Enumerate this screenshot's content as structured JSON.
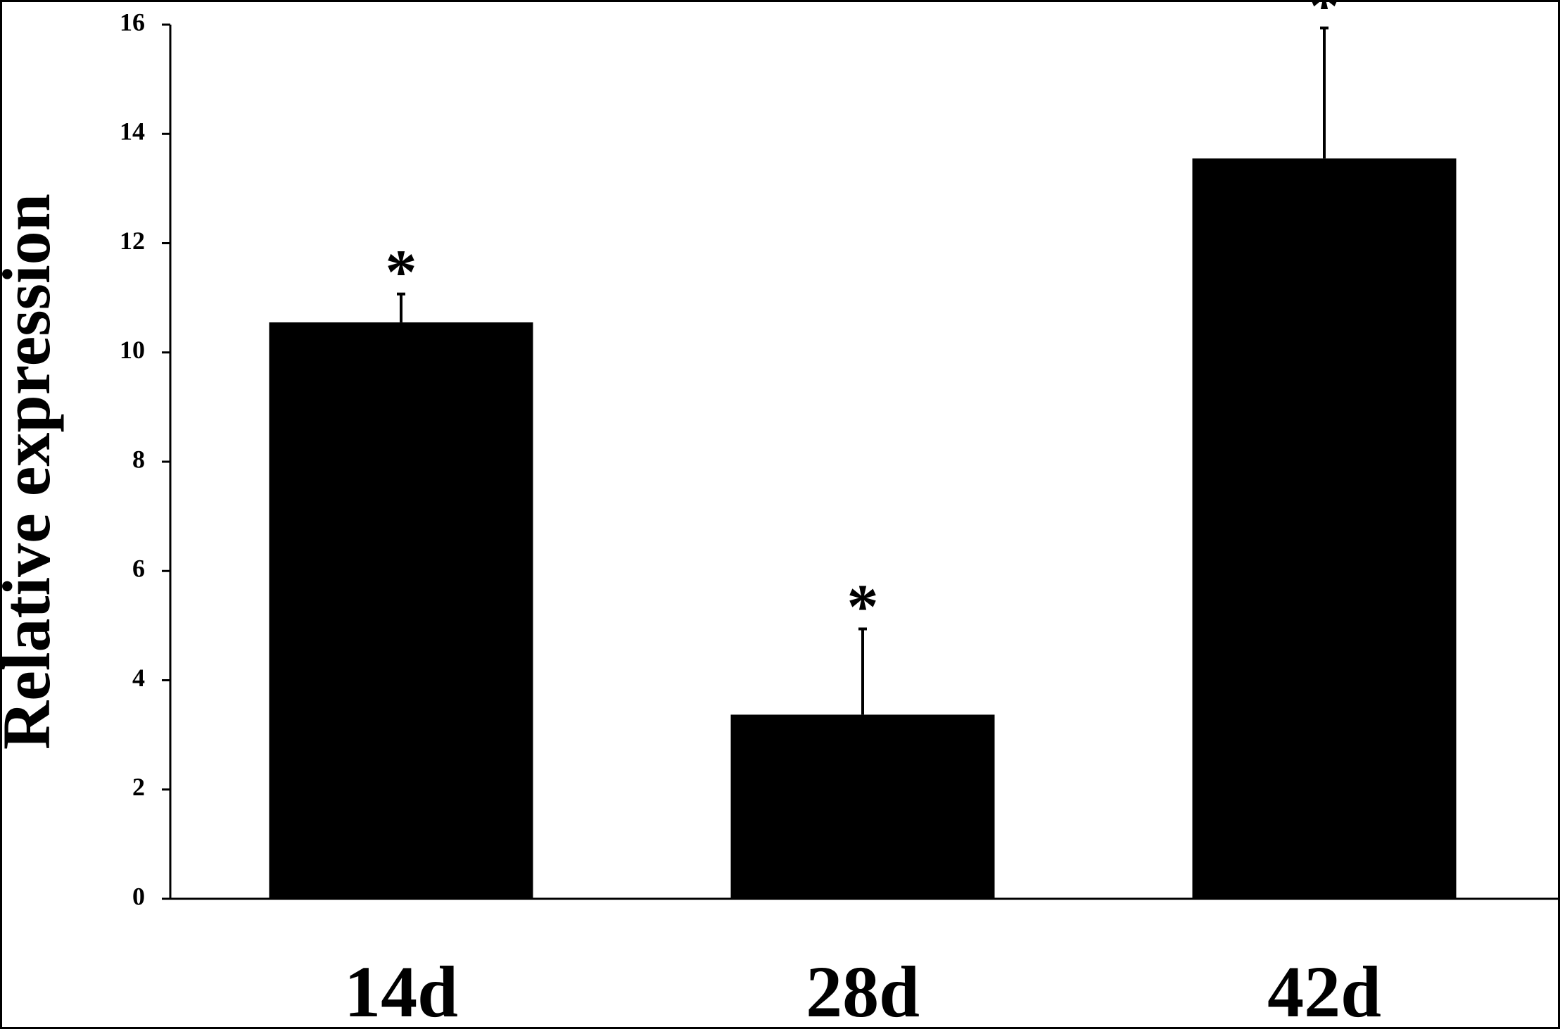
{
  "chart_data": {
    "type": "bar",
    "ylabel": "Relative expression",
    "categories": [
      "14d",
      "28d",
      "42d"
    ],
    "values": [
      10.55,
      3.37,
      13.55
    ],
    "errors": [
      0.52,
      1.57,
      2.39
    ],
    "significance": [
      "*",
      "*",
      "*"
    ],
    "color": "#000000",
    "ylim": [
      0,
      16
    ],
    "yticks": [
      0,
      2,
      4,
      6,
      8,
      10,
      12,
      14,
      16
    ],
    "grid": false
  }
}
